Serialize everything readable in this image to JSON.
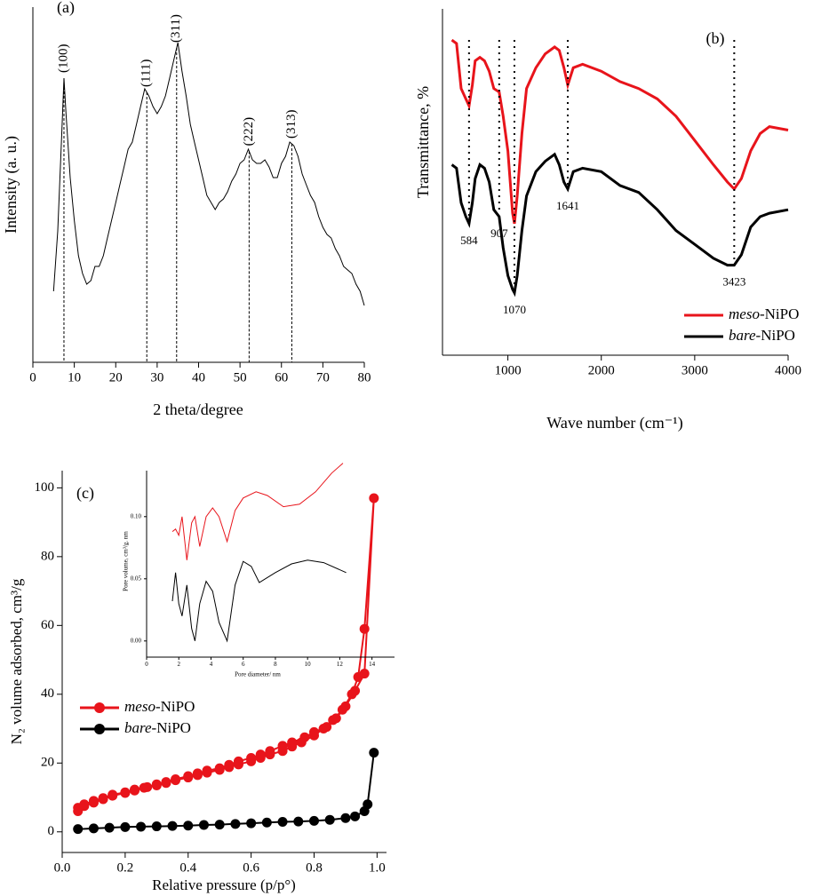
{
  "chart_data": [
    {
      "type": "line",
      "label": "(a)",
      "xlabel": "2 theta/degree",
      "ylabel": "Intensity (a. u.)",
      "xlim": [
        0,
        80
      ],
      "xticks": [
        0,
        10,
        20,
        30,
        40,
        50,
        60,
        70,
        80
      ],
      "ylim": [
        0,
        100
      ],
      "x": [
        5,
        6,
        7,
        7.5,
        8,
        9,
        10,
        11,
        12,
        13,
        14,
        15,
        16,
        17,
        18,
        19,
        20,
        21,
        22,
        23,
        24,
        25,
        26,
        27,
        28,
        29,
        30,
        31,
        32,
        33,
        34,
        35,
        36,
        37,
        38,
        39,
        40,
        41,
        42,
        43,
        44,
        45,
        46,
        47,
        48,
        49,
        50,
        51,
        52,
        53,
        54,
        55,
        56,
        57,
        58,
        59,
        60,
        61,
        62,
        63,
        64,
        65,
        66,
        67,
        68,
        69,
        70,
        71,
        72,
        73,
        74,
        75,
        76,
        77,
        78,
        79,
        80
      ],
      "series": [
        {
          "color": "#000000",
          "values": [
            20,
            37,
            65,
            80,
            70,
            52,
            40,
            30,
            25,
            22,
            23,
            27,
            27,
            30,
            35,
            40,
            45,
            50,
            55,
            60,
            62,
            67,
            72,
            77,
            75,
            72,
            70,
            72,
            75,
            80,
            85,
            90,
            82,
            75,
            67,
            62,
            57,
            52,
            47,
            45,
            43,
            45,
            46,
            48,
            51,
            53,
            56,
            57,
            60,
            57,
            56,
            56,
            57,
            55,
            52,
            52,
            56,
            58,
            62,
            61,
            58,
            53,
            50,
            47,
            45,
            41,
            38,
            36,
            35,
            32,
            30,
            27,
            26,
            25,
            22,
            20,
            16
          ]
        }
      ],
      "annotations": [
        {
          "text": "(100)",
          "x": 7.5
        },
        {
          "text": "(111)",
          "x": 27.5
        },
        {
          "text": "(311)",
          "x": 34.7
        },
        {
          "text": "(222)",
          "x": 52.2
        },
        {
          "text": "(313)",
          "x": 62.5
        }
      ]
    },
    {
      "type": "line",
      "label": "(b)",
      "xlabel": "Wave number (cm⁻¹)",
      "ylabel": "Transmittance, %",
      "xlim": [
        300,
        4000
      ],
      "xticks": [
        1000,
        2000,
        3000,
        4000
      ],
      "ylim": [
        0,
        100
      ],
      "x": [
        400,
        450,
        500,
        550,
        584,
        620,
        650,
        700,
        750,
        800,
        850,
        907,
        950,
        1000,
        1050,
        1070,
        1100,
        1150,
        1200,
        1300,
        1400,
        1500,
        1550,
        1600,
        1641,
        1700,
        1800,
        2000,
        2200,
        2400,
        2600,
        2800,
        3000,
        3200,
        3350,
        3423,
        3500,
        3600,
        3700,
        3800,
        4000
      ],
      "series": [
        {
          "name": "meso-NiPO",
          "color": "#e8141b",
          "values": [
            91,
            90,
            77,
            74,
            72,
            78,
            85,
            86,
            85,
            82,
            77,
            76,
            69,
            59,
            41,
            38,
            46,
            64,
            77,
            83,
            87,
            89,
            88,
            83,
            78,
            83,
            84,
            82,
            79,
            77,
            74,
            69,
            62,
            55,
            50,
            48,
            51,
            59,
            64,
            66,
            65
          ]
        },
        {
          "name": "bare-NiPO",
          "color": "#000000",
          "values": [
            55,
            54,
            44,
            40,
            38,
            44,
            51,
            55,
            54,
            50,
            42,
            40,
            31,
            23,
            19,
            18,
            23,
            36,
            46,
            53,
            56,
            58,
            55,
            50,
            48,
            53,
            54,
            53,
            49,
            47,
            42,
            36,
            32,
            28,
            26,
            26,
            29,
            37,
            40,
            41,
            42
          ]
        }
      ],
      "annotations": [
        {
          "text": "584",
          "x": 584
        },
        {
          "text": "907",
          "x": 907
        },
        {
          "text": "1070",
          "x": 1070
        },
        {
          "text": "1641",
          "x": 1641
        },
        {
          "text": "3423",
          "x": 3423
        }
      ]
    },
    {
      "type": "scatter",
      "label": "(c)",
      "xlabel": "Relative pressure (p/p°)",
      "ylabel": "N₂ volume adsorbed, cm³/g",
      "xlim": [
        0,
        1.03
      ],
      "xticks": [
        {
          "value": 0,
          "label": "0.0"
        },
        0.2,
        0.4,
        0.6,
        0.8,
        {
          "value": 1,
          "label": "1.0"
        }
      ],
      "ylim": [
        -6,
        105
      ],
      "yticks": [
        0,
        20,
        40,
        60,
        80,
        100
      ],
      "series": [
        {
          "name": "meso-NiPO",
          "color": "#e8141b",
          "x": [
            0.05,
            0.07,
            0.1,
            0.13,
            0.16,
            0.2,
            0.23,
            0.26,
            0.3,
            0.33,
            0.36,
            0.4,
            0.43,
            0.46,
            0.5,
            0.53,
            0.56,
            0.6,
            0.63,
            0.66,
            0.7,
            0.73,
            0.76,
            0.8,
            0.83,
            0.86,
            0.89,
            0.92,
            0.94,
            0.96,
            0.99,
            0.96,
            0.93,
            0.9,
            0.87,
            0.84,
            0.8,
            0.77,
            0.73,
            0.7,
            0.66,
            0.63,
            0.6,
            0.56,
            0.53,
            0.5,
            0.46,
            0.43,
            0.4,
            0.36,
            0.33,
            0.3,
            0.27,
            0.23,
            0.2,
            0.16,
            0.13,
            0.1,
            0.07,
            0.05
          ],
          "values": [
            6,
            7.5,
            8.5,
            9.5,
            10.5,
            11.3,
            12,
            12.8,
            13.5,
            14.2,
            15,
            15.8,
            16.5,
            17.2,
            18,
            18.8,
            19.6,
            20.5,
            21.5,
            22.5,
            23.5,
            24.8,
            26,
            28,
            30,
            32.5,
            35.5,
            40,
            45,
            59,
            97,
            46,
            41,
            36.5,
            33,
            30.5,
            29,
            27.5,
            26,
            25,
            23.5,
            22.5,
            21.5,
            20.5,
            19.5,
            18.5,
            17.8,
            17,
            16.2,
            15.3,
            14.5,
            13.8,
            13,
            12.3,
            11.5,
            10.8,
            9.8,
            9,
            8,
            7
          ]
        },
        {
          "name": "bare-NiPO",
          "color": "#000000",
          "x": [
            0.05,
            0.1,
            0.15,
            0.2,
            0.25,
            0.3,
            0.35,
            0.4,
            0.45,
            0.5,
            0.55,
            0.6,
            0.65,
            0.7,
            0.75,
            0.8,
            0.85,
            0.9,
            0.93,
            0.96,
            0.97,
            0.99
          ],
          "values": [
            0.8,
            1,
            1.2,
            1.4,
            1.5,
            1.6,
            1.7,
            1.8,
            2,
            2.1,
            2.3,
            2.5,
            2.7,
            2.9,
            3,
            3.2,
            3.5,
            4,
            4.5,
            6,
            8,
            23
          ]
        }
      ]
    },
    {
      "type": "line",
      "xlabel": "Pore diameter/ nm",
      "ylabel": "Pore volume, cm³/g. nm",
      "xlim": [
        0,
        15.4
      ],
      "xticks": [
        0,
        2,
        4,
        6,
        8,
        10,
        12,
        14
      ],
      "ylim": [
        -0.013,
        0.137
      ],
      "yticks": [
        {
          "value": 0,
          "label": "0.00"
        },
        0.05,
        {
          "value": 0.1,
          "label": "0.10"
        }
      ],
      "series": [
        {
          "color": "#e8141b",
          "x": [
            1.6,
            1.8,
            2.0,
            2.2,
            2.5,
            2.8,
            3.0,
            3.3,
            3.7,
            4.1,
            4.5,
            5.0,
            5.5,
            6.0,
            6.8,
            7.5,
            8.5,
            9.5,
            10.5,
            11.5,
            12.2
          ],
          "values": [
            0.088,
            0.09,
            0.085,
            0.1,
            0.065,
            0.095,
            0.1,
            0.076,
            0.1,
            0.107,
            0.1,
            0.08,
            0.105,
            0.115,
            0.12,
            0.117,
            0.108,
            0.11,
            0.12,
            0.135,
            0.143
          ]
        },
        {
          "color": "#000000",
          "x": [
            1.6,
            1.8,
            2.0,
            2.2,
            2.5,
            2.8,
            3.0,
            3.3,
            3.7,
            4.1,
            4.5,
            5.0,
            5.5,
            6.0,
            6.5,
            7.0,
            8.0,
            9.0,
            10.0,
            11.0,
            12.4
          ],
          "values": [
            0.032,
            0.055,
            0.03,
            0.02,
            0.045,
            0.01,
            0.0,
            0.03,
            0.048,
            0.04,
            0.015,
            0.0,
            0.045,
            0.064,
            0.06,
            0.047,
            0.055,
            0.062,
            0.065,
            0.063,
            0.055
          ]
        }
      ]
    }
  ]
}
